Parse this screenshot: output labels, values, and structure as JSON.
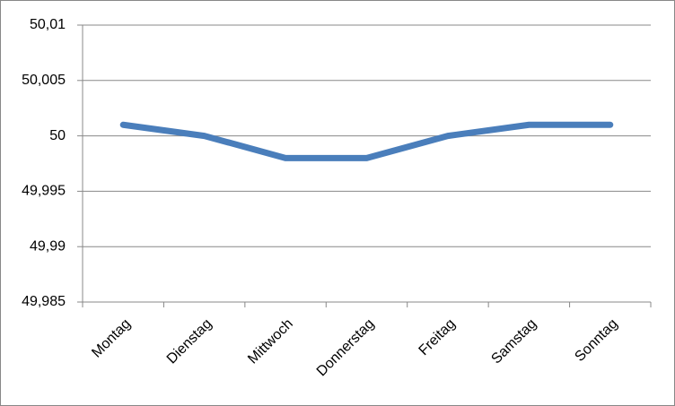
{
  "chart_data": {
    "type": "line",
    "categories": [
      "Montag",
      "Dienstag",
      "Mittwoch",
      "Donnerstag",
      "Freitag",
      "Samstag",
      "Sonntag"
    ],
    "series": [
      {
        "color": "#4a7ebb",
        "values": [
          50.001,
          50,
          49.998,
          49.998,
          50,
          50.001,
          50.001
        ]
      }
    ],
    "ylim": [
      49.985,
      50.01
    ],
    "yticks": [
      {
        "value": 49.985,
        "label": "49,985"
      },
      {
        "value": 49.99,
        "label": "49,99"
      },
      {
        "value": 49.995,
        "label": "49,995"
      },
      50,
      {
        "value": 50.005,
        "label": "50,005"
      },
      {
        "value": 50.01,
        "label": "50,01"
      }
    ],
    "grid": true
  }
}
